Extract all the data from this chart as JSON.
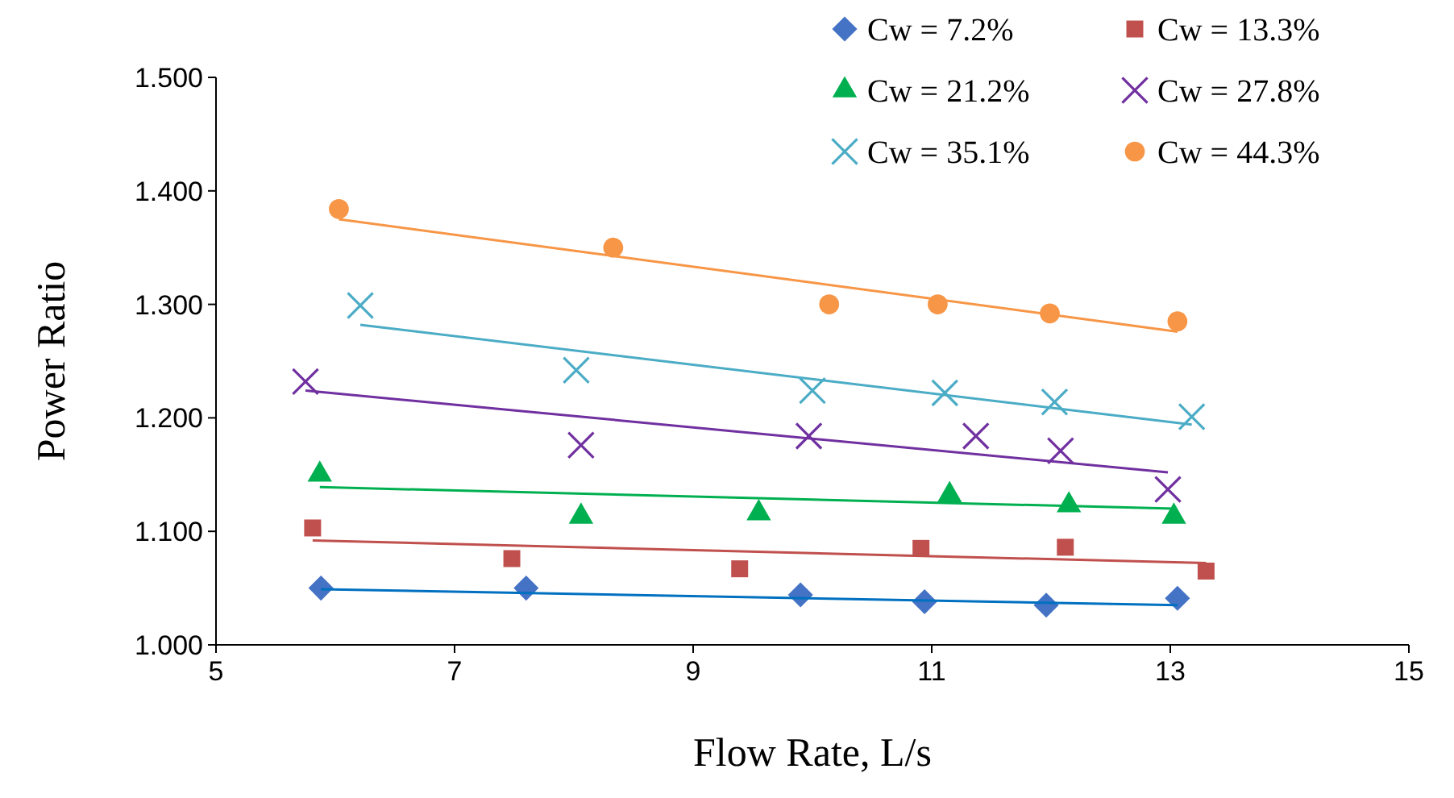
{
  "chart_data": {
    "type": "scatter",
    "xlabel": "Flow Rate, L/s",
    "ylabel": "Power Ratio",
    "xlim": [
      5,
      15
    ],
    "xticks": [
      5,
      7,
      9,
      11,
      13,
      15
    ],
    "ylim": [
      1,
      1.5
    ],
    "yticks": [
      {
        "value": 1,
        "label": "1.000"
      },
      {
        "value": 1.1,
        "label": "1.100"
      },
      {
        "value": 1.2,
        "label": "1.200"
      },
      {
        "value": 1.3,
        "label": "1.300"
      },
      {
        "value": 1.4,
        "label": "1.400"
      },
      {
        "value": 1.5,
        "label": "1.500"
      }
    ],
    "grid": false,
    "legend": "top right",
    "series": [
      {
        "name": "Cw = 7.2%",
        "color": "#4472c4",
        "marker": "diamond",
        "x": [
          5.88,
          7.6,
          9.9,
          10.94,
          11.96,
          13.06
        ],
        "values": [
          1.05,
          1.05,
          1.044,
          1.038,
          1.035,
          1.041
        ]
      },
      {
        "name": "Cw = 13.3%",
        "color": "#c0504d",
        "marker": "square",
        "x": [
          5.81,
          7.48,
          9.39,
          10.91,
          12.12,
          13.3
        ],
        "values": [
          1.103,
          1.076,
          1.067,
          1.085,
          1.086,
          1.065
        ]
      },
      {
        "name": "Cw = 21.2%",
        "color": "#00b050",
        "marker": "triangle",
        "x": [
          5.87,
          8.06,
          9.55,
          11.15,
          12.15,
          13.03
        ],
        "values": [
          1.15,
          1.113,
          1.116,
          1.132,
          1.123,
          1.113
        ]
      },
      {
        "name": "Cw = 27.8%",
        "color": "#7030a0",
        "marker": "cross",
        "x": [
          5.75,
          8.06,
          9.97,
          11.37,
          12.08,
          12.98
        ],
        "values": [
          1.232,
          1.176,
          1.184,
          1.184,
          1.171,
          1.137
        ]
      },
      {
        "name": "Cw = 35.1%",
        "color": "#4bacc6",
        "marker": "cross",
        "x": [
          6.21,
          8.02,
          10.0,
          11.11,
          12.03,
          13.18
        ],
        "values": [
          1.299,
          1.242,
          1.224,
          1.222,
          1.214,
          1.201
        ]
      },
      {
        "name": "Cw = 44.3%",
        "color": "#f79646",
        "marker": "circle",
        "x": [
          6.03,
          8.33,
          10.14,
          11.05,
          11.99,
          13.06
        ],
        "values": [
          1.384,
          1.35,
          1.3,
          1.3,
          1.292,
          1.285
        ]
      },
      {
        "type": "line",
        "color": "#0070c0",
        "x": [
          5.88,
          13.06
        ],
        "values": [
          1.049,
          1.035
        ]
      },
      {
        "type": "line",
        "color": "#c0504d",
        "x": [
          5.81,
          13.3
        ],
        "values": [
          1.092,
          1.072
        ]
      },
      {
        "type": "line",
        "color": "#00b050",
        "x": [
          5.87,
          13.03
        ],
        "values": [
          1.139,
          1.12
        ]
      },
      {
        "type": "line",
        "color": "#7030a0",
        "x": [
          5.75,
          12.98
        ],
        "values": [
          1.224,
          1.152
        ]
      },
      {
        "type": "line",
        "color": "#4bacc6",
        "x": [
          6.21,
          13.18
        ],
        "values": [
          1.282,
          1.194
        ]
      },
      {
        "type": "line",
        "color": "#f79646",
        "x": [
          6.03,
          13.06
        ],
        "values": [
          1.375,
          1.276
        ]
      }
    ]
  }
}
